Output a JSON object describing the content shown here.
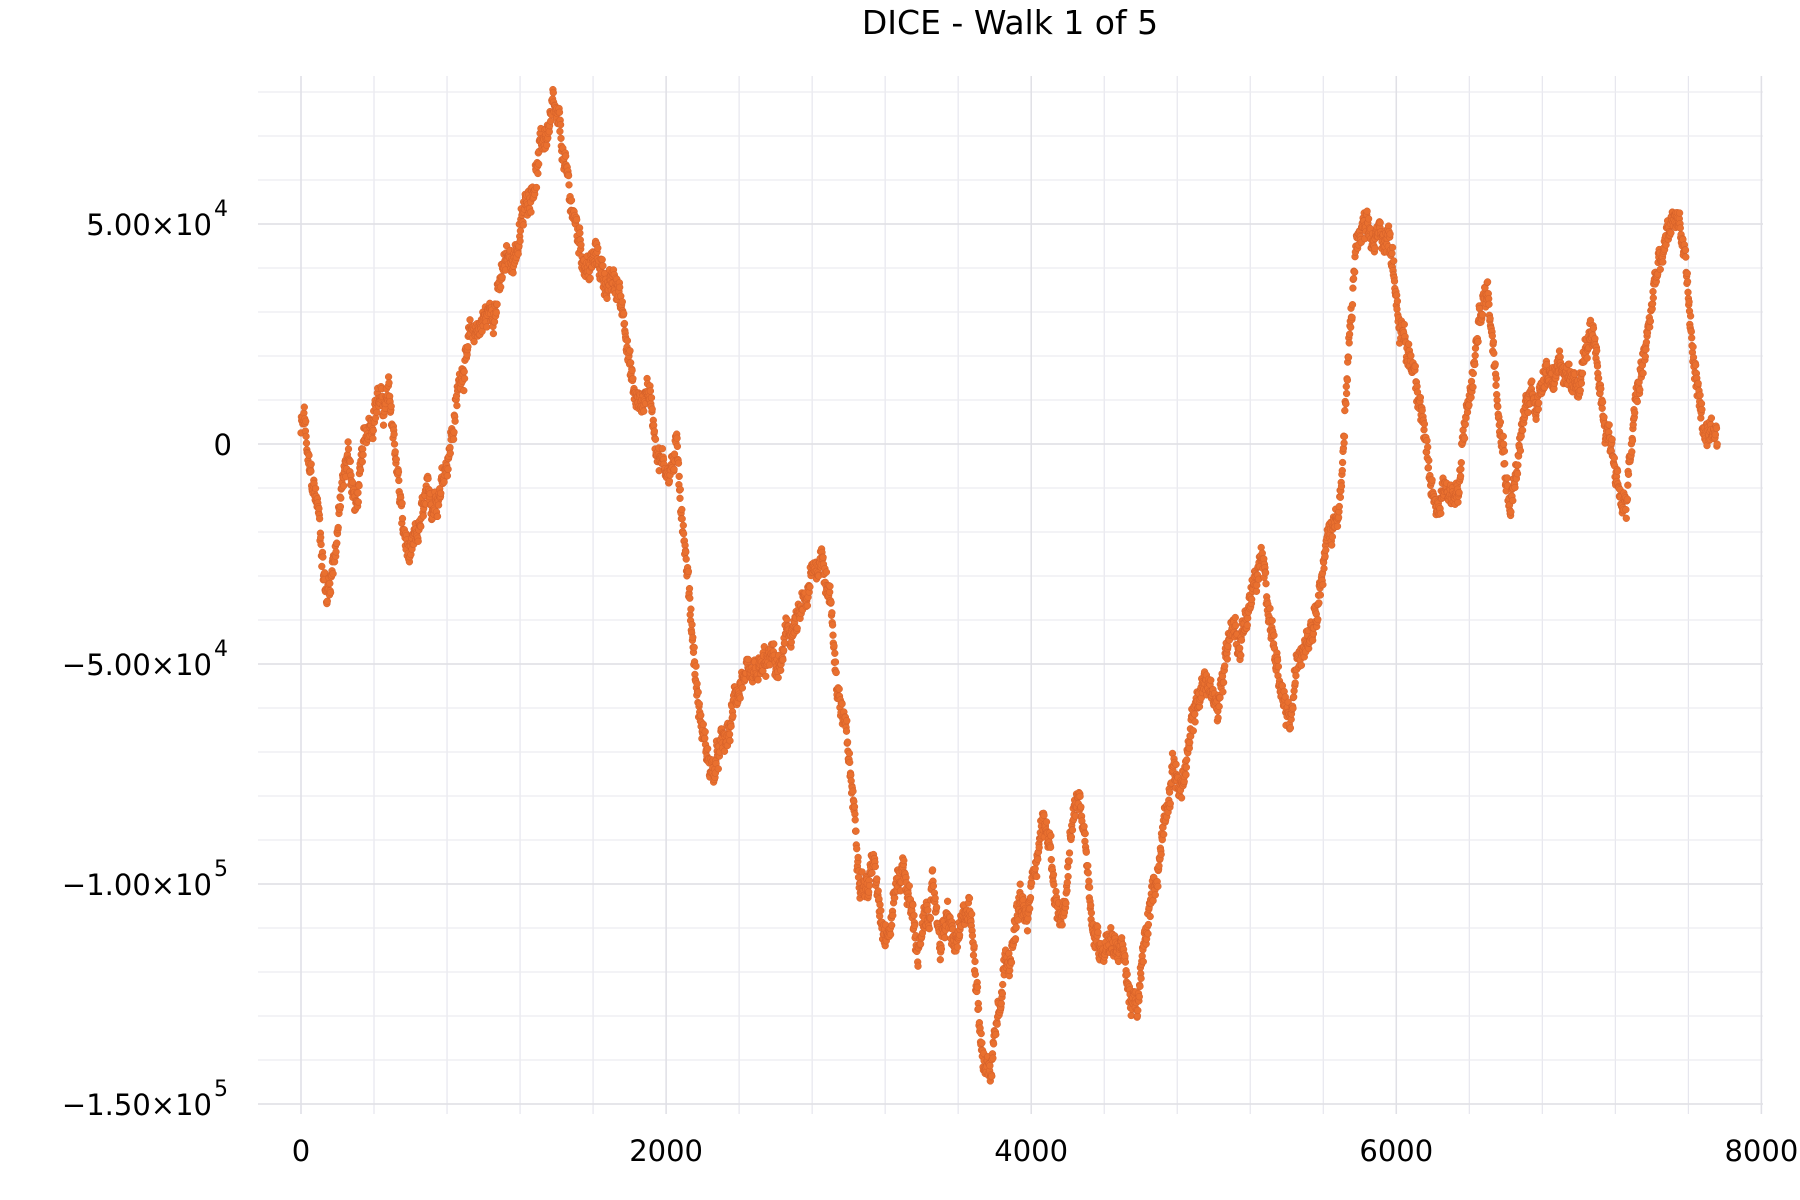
{
  "chart_data": {
    "type": "scatter",
    "title": "DICE - Walk 1 of 5",
    "xlabel": "",
    "ylabel": "",
    "xlim": [
      -200,
      8000
    ],
    "ylim": [
      -152000,
      83000
    ],
    "grid": true,
    "legend": "none",
    "x_ticks": [
      {
        "value": 0,
        "label": "0"
      },
      {
        "value": 2000,
        "label": "2000"
      },
      {
        "value": 4000,
        "label": "4000"
      },
      {
        "value": 6000,
        "label": "6000"
      },
      {
        "value": 8000,
        "label": "8000"
      }
    ],
    "y_ticks": [
      {
        "value": 50000,
        "mantissa": "5.00×10",
        "exp": "4"
      },
      {
        "value": 0,
        "mantissa": "0",
        "exp": ""
      },
      {
        "value": -50000,
        "mantissa": "−5.00×10",
        "exp": "4"
      },
      {
        "value": -100000,
        "mantissa": "−1.00×10",
        "exp": "5"
      },
      {
        "value": -150000,
        "mantissa": "−1.50×10",
        "exp": "5"
      }
    ],
    "x_minor_step": 400,
    "y_minor_step": 10000,
    "series": [
      {
        "name": "walk 1",
        "color": "#E9702F",
        "marker_radius": 3.4,
        "n_points": 7760,
        "trace_x": [
          0,
          20,
          40,
          60,
          90,
          120,
          140,
          180,
          220,
          260,
          300,
          340,
          380,
          420,
          450,
          480,
          520,
          560,
          600,
          640,
          680,
          720,
          760,
          800,
          840,
          880,
          920,
          960,
          1000,
          1040,
          1080,
          1120,
          1160,
          1200,
          1240,
          1280,
          1320,
          1360,
          1380,
          1420,
          1460,
          1500,
          1540,
          1580,
          1620,
          1660,
          1700,
          1740,
          1780,
          1820,
          1860,
          1900,
          1940,
          1980,
          2020,
          2060,
          2100,
          2140,
          2180,
          2220,
          2260,
          2300,
          2340,
          2380,
          2420,
          2460,
          2500,
          2540,
          2580,
          2620,
          2660,
          2700,
          2740,
          2780,
          2820,
          2860,
          2900,
          2940,
          2980,
          3020,
          3060,
          3100,
          3140,
          3180,
          3220,
          3260,
          3300,
          3340,
          3380,
          3420,
          3460,
          3500,
          3540,
          3580,
          3620,
          3660,
          3700,
          3740,
          3780,
          3820,
          3860,
          3900,
          3940,
          3980,
          4020,
          4060,
          4100,
          4140,
          4180,
          4220,
          4260,
          4300,
          4340,
          4380,
          4420,
          4460,
          4500,
          4540,
          4580,
          4620,
          4660,
          4700,
          4740,
          4780,
          4820,
          4860,
          4900,
          4940,
          4980,
          5020,
          5060,
          5100,
          5140,
          5180,
          5220,
          5260,
          5300,
          5340,
          5380,
          5420,
          5460,
          5500,
          5540,
          5580,
          5620,
          5660,
          5700,
          5740,
          5780,
          5820,
          5860,
          5900,
          5940,
          5980,
          6020,
          6060,
          6100,
          6140,
          6180,
          6220,
          6260,
          6300,
          6340,
          6380,
          6420,
          6460,
          6500,
          6540,
          6580,
          6620,
          6660,
          6700,
          6740,
          6780,
          6820,
          6860,
          6900,
          6940,
          6980,
          7020,
          7060,
          7100,
          7140,
          7180,
          7220,
          7260,
          7300,
          7340,
          7380,
          7420,
          7460,
          7500,
          7540,
          7580,
          7620,
          7660,
          7700,
          7740,
          7760
        ],
        "trace_y": [
          3000,
          5000,
          -6000,
          -10000,
          -14000,
          -26000,
          -35000,
          -25000,
          -12000,
          -2000,
          -15000,
          -3000,
          6000,
          12000,
          8000,
          10000,
          -3000,
          -20000,
          -28000,
          -22000,
          -15000,
          -15000,
          -8000,
          -2000,
          6000,
          18000,
          22000,
          26000,
          28000,
          30000,
          35000,
          40000,
          42000,
          48000,
          55000,
          62000,
          68000,
          72000,
          74000,
          68000,
          58000,
          50000,
          44000,
          40000,
          42000,
          38000,
          36000,
          34000,
          28000,
          12000,
          8000,
          14000,
          3000,
          -4000,
          -5000,
          -2000,
          -20000,
          -40000,
          -60000,
          -70000,
          -75000,
          -70000,
          -68000,
          -58000,
          -52000,
          -58000,
          -55000,
          -52000,
          -50000,
          -52000,
          -45000,
          -42000,
          -40000,
          -35000,
          -28000,
          -25000,
          -35000,
          -55000,
          -65000,
          -80000,
          -95000,
          -100000,
          -95000,
          -105000,
          -110000,
          -100000,
          -95000,
          -105000,
          -115000,
          -110000,
          -102000,
          -112000,
          -108000,
          -115000,
          -112000,
          -105000,
          -120000,
          -140000,
          -142000,
          -125000,
          -115000,
          -112000,
          -105000,
          -110000,
          -95000,
          -85000,
          -90000,
          -105000,
          -110000,
          -90000,
          -80000,
          -90000,
          -110000,
          -115000,
          -110000,
          -112000,
          -115000,
          -125000,
          -130000,
          -115000,
          -105000,
          -95000,
          -80000,
          -72000,
          -78000,
          -72000,
          -60000,
          -55000,
          -55000,
          -62000,
          -48000,
          -40000,
          -45000,
          -38000,
          -32000,
          -28000,
          -35000,
          -48000,
          -62000,
          -65000,
          -50000,
          -42000,
          -38000,
          -30000,
          -22000,
          -18000,
          -8000,
          20000,
          45000,
          48000,
          44000,
          46000,
          48000,
          44000,
          28000,
          20000,
          18000,
          10000,
          -10000,
          -15000,
          -8000,
          -10000,
          -12000,
          5000,
          15000,
          30000,
          35000,
          20000,
          5000,
          -12000,
          -5000,
          5000,
          12000,
          10000,
          20000,
          15000,
          22000,
          12000,
          10000,
          18000,
          25000,
          15000,
          5000,
          0,
          -10000,
          -15000,
          5000,
          15000,
          25000,
          38000,
          42000,
          48000,
          52000,
          45000,
          22000,
          10000,
          0,
          -2000,
          -3000,
          -2000
        ]
      }
    ]
  }
}
